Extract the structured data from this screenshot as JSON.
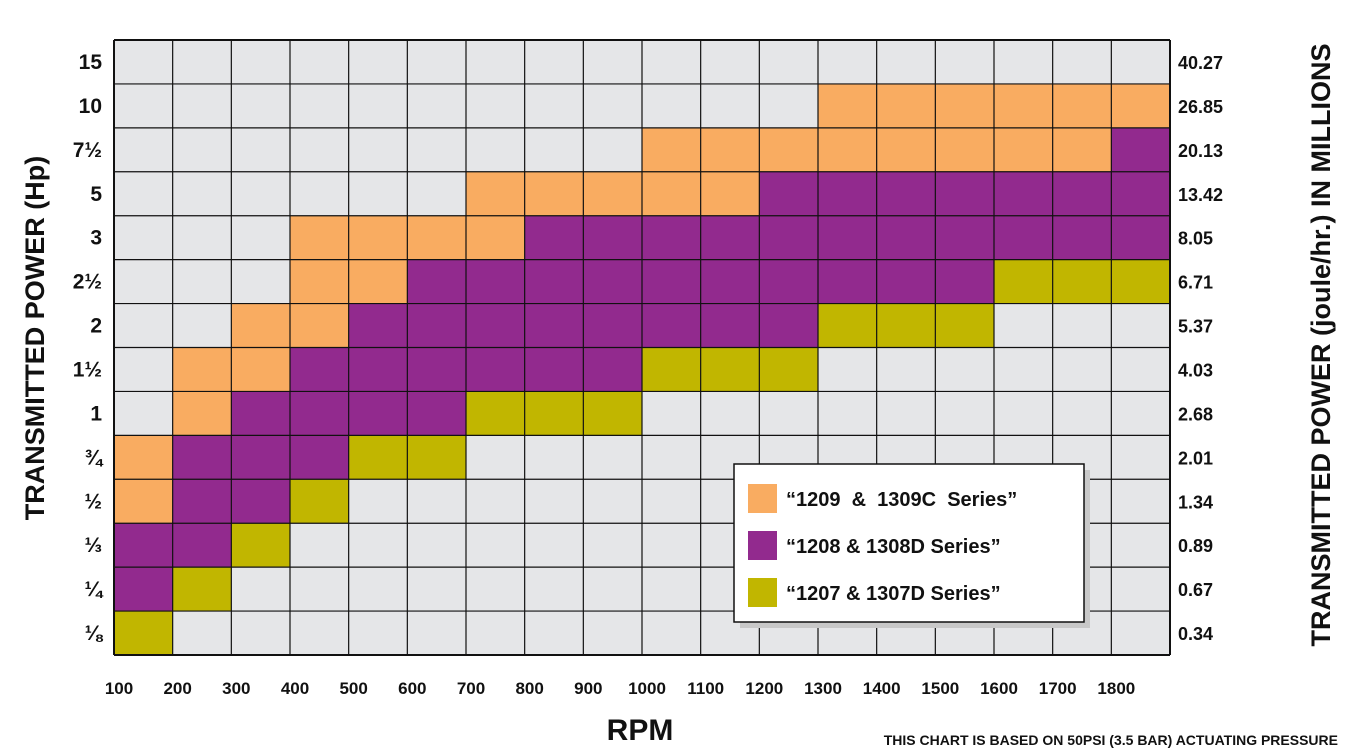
{
  "chart_data": {
    "type": "heatmap",
    "xlabel": "RPM",
    "ylabel": "TRANSMITTED POWER (Hp)",
    "ylabel_right": "TRANSMITTED POWER (joule/hr.) IN MILLIONS",
    "x_categories": [
      "100",
      "200",
      "300",
      "400",
      "500",
      "600",
      "700",
      "800",
      "900",
      "1000",
      "1100",
      "1200",
      "1300",
      "1400",
      "1500",
      "1600",
      "1700",
      "1800"
    ],
    "y_categories": [
      "15",
      "10",
      "7½",
      "5",
      "3",
      "2½",
      "2",
      "1½",
      "1",
      "¾",
      "½",
      "⅓",
      "¼",
      "⅛"
    ],
    "y_categories_right": [
      "40.27",
      "26.85",
      "20.13",
      "13.42",
      "8.05",
      "6.71",
      "5.37",
      "4.03",
      "2.68",
      "2.01",
      "1.34",
      "0.89",
      "0.67",
      "0.34"
    ],
    "series": [
      {
        "name": "“1209  &  1309C  Series”",
        "color": "#F9AC61",
        "key": "C"
      },
      {
        "name": "“1208 & 1308D Series”",
        "color": "#922A8E",
        "key": "D"
      },
      {
        "name": "“1207 & 1307D Series”",
        "color": "#C1B600",
        "key": "7"
      }
    ],
    "empty_color": "#E5E6E8",
    "grid": [
      "..................",
      "............CCCCCC",
      ".........CCCCCCCCD",
      "......CCCCCDDDDDDD",
      "...CCCCDDDDDDDDDDD",
      "...CCDDDDDDDDDD777",
      "..CCDDDDDDDD777...",
      ".CCDDDDDD777......",
      ".CDDDD777.........",
      "CDDD77............",
      "CDD7..............",
      "DD7...............",
      "D7................",
      "7................."
    ],
    "legend_position": "bottom-right",
    "note": "THIS CHART IS BASED ON 50PSI (3.5 BAR) ACTUATING PRESSURE"
  }
}
